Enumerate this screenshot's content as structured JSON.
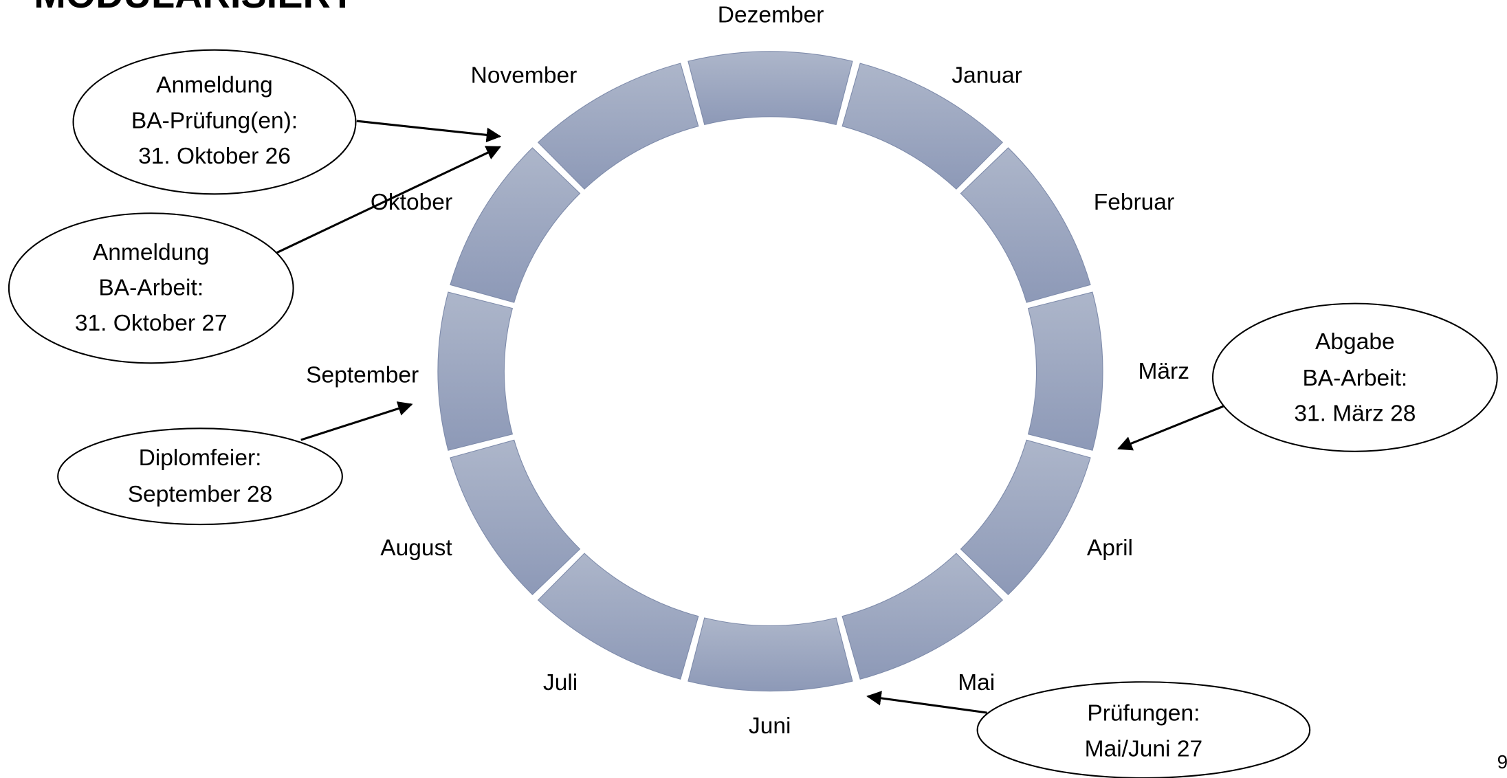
{
  "title": "MODULARISIERT",
  "months": [
    "Dezember",
    "Januar",
    "Februar",
    "März",
    "April",
    "Mai",
    "Juni",
    "Juli",
    "August",
    "September",
    "Oktober",
    "November"
  ],
  "callouts": [
    {
      "lines": [
        "Anmeldung",
        "BA-Prüfung(en):",
        "31. Oktober 26"
      ]
    },
    {
      "lines": [
        "Anmeldung",
        "BA-Arbeit:",
        "31. Oktober 27"
      ]
    },
    {
      "lines": [
        "Diplomfeier:",
        "September 28"
      ]
    },
    {
      "lines": [
        "Abgabe",
        "BA-Arbeit:",
        "31. März 28"
      ]
    },
    {
      "lines": [
        "Prüfungen:",
        "Mai/Juni 27"
      ]
    }
  ],
  "page_number": "9"
}
